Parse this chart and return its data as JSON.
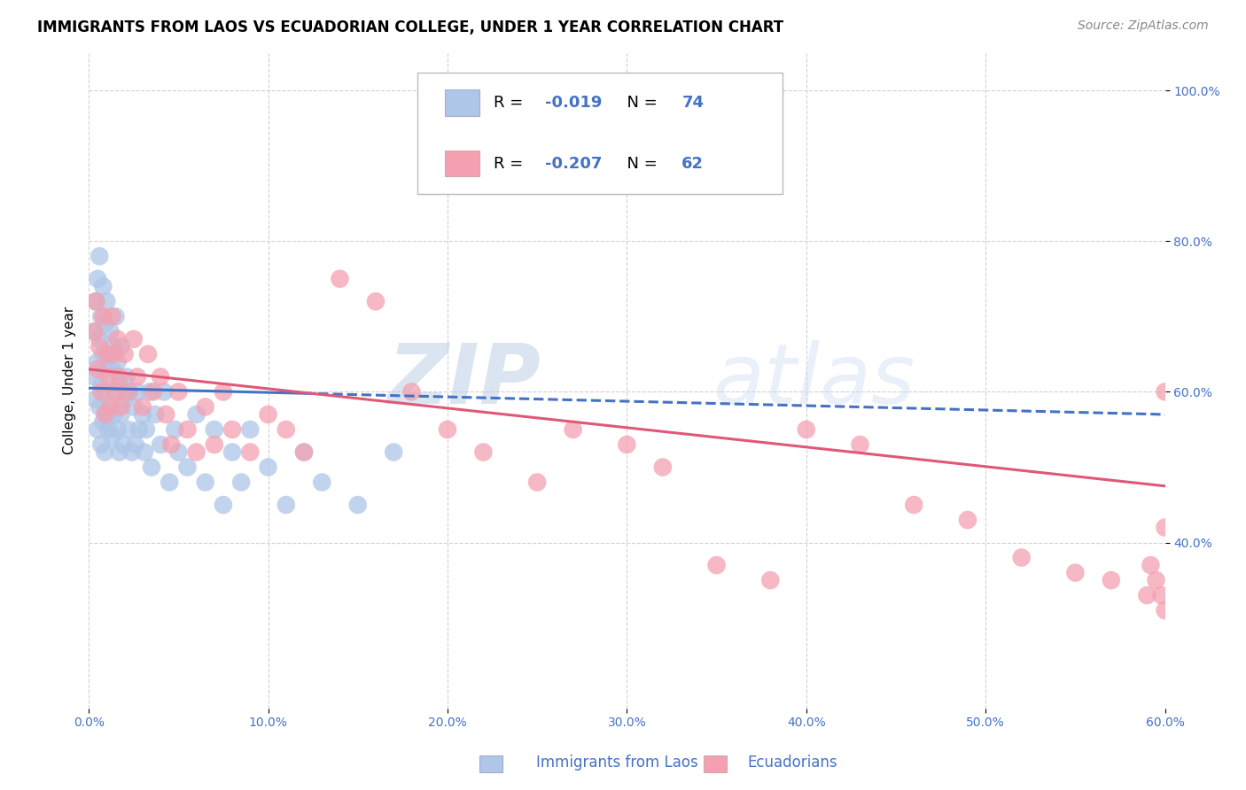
{
  "title": "IMMIGRANTS FROM LAOS VS ECUADORIAN COLLEGE, UNDER 1 YEAR CORRELATION CHART",
  "source": "Source: ZipAtlas.com",
  "ylabel": "College, Under 1 year",
  "x_min": 0.0,
  "x_max": 0.6,
  "y_min": 0.18,
  "y_max": 1.05,
  "x_ticks": [
    0.0,
    0.1,
    0.2,
    0.3,
    0.4,
    0.5,
    0.6
  ],
  "y_ticks": [
    0.4,
    0.6,
    0.8,
    1.0
  ],
  "legend_entries": [
    {
      "label": "Immigrants from Laos",
      "R": "-0.019",
      "N": "74",
      "color": "#aec6e8"
    },
    {
      "label": "Ecuadorians",
      "R": "-0.207",
      "N": "62",
      "color": "#f4a0b0"
    }
  ],
  "blue_scatter_x": [
    0.003,
    0.003,
    0.004,
    0.004,
    0.005,
    0.005,
    0.005,
    0.006,
    0.006,
    0.006,
    0.007,
    0.007,
    0.007,
    0.008,
    0.008,
    0.008,
    0.009,
    0.009,
    0.009,
    0.01,
    0.01,
    0.01,
    0.011,
    0.011,
    0.012,
    0.012,
    0.013,
    0.013,
    0.014,
    0.014,
    0.015,
    0.015,
    0.016,
    0.016,
    0.017,
    0.017,
    0.018,
    0.018,
    0.019,
    0.02,
    0.021,
    0.022,
    0.023,
    0.024,
    0.025,
    0.026,
    0.027,
    0.028,
    0.03,
    0.031,
    0.032,
    0.034,
    0.035,
    0.037,
    0.04,
    0.042,
    0.045,
    0.048,
    0.05,
    0.055,
    0.06,
    0.065,
    0.07,
    0.075,
    0.08,
    0.085,
    0.09,
    0.1,
    0.11,
    0.12,
    0.13,
    0.15,
    0.17,
    0.2
  ],
  "blue_scatter_y": [
    0.62,
    0.68,
    0.59,
    0.72,
    0.55,
    0.64,
    0.75,
    0.58,
    0.67,
    0.78,
    0.53,
    0.61,
    0.7,
    0.56,
    0.65,
    0.74,
    0.52,
    0.6,
    0.69,
    0.57,
    0.63,
    0.72,
    0.55,
    0.65,
    0.58,
    0.68,
    0.54,
    0.63,
    0.57,
    0.66,
    0.6,
    0.7,
    0.55,
    0.64,
    0.52,
    0.61,
    0.57,
    0.66,
    0.53,
    0.59,
    0.62,
    0.55,
    0.6,
    0.52,
    0.58,
    0.53,
    0.6,
    0.55,
    0.57,
    0.52,
    0.55,
    0.6,
    0.5,
    0.57,
    0.53,
    0.6,
    0.48,
    0.55,
    0.52,
    0.5,
    0.57,
    0.48,
    0.55,
    0.45,
    0.52,
    0.48,
    0.55,
    0.5,
    0.45,
    0.52,
    0.48,
    0.45,
    0.52,
    0.9
  ],
  "pink_scatter_x": [
    0.003,
    0.004,
    0.005,
    0.006,
    0.007,
    0.008,
    0.009,
    0.01,
    0.011,
    0.012,
    0.013,
    0.014,
    0.015,
    0.016,
    0.017,
    0.018,
    0.02,
    0.022,
    0.025,
    0.027,
    0.03,
    0.033,
    0.036,
    0.04,
    0.043,
    0.046,
    0.05,
    0.055,
    0.06,
    0.065,
    0.07,
    0.075,
    0.08,
    0.09,
    0.1,
    0.11,
    0.12,
    0.14,
    0.16,
    0.18,
    0.2,
    0.22,
    0.25,
    0.27,
    0.3,
    0.32,
    0.35,
    0.38,
    0.4,
    0.43,
    0.46,
    0.49,
    0.52,
    0.55,
    0.57,
    0.59,
    0.592,
    0.595,
    0.598,
    0.6,
    0.6,
    0.6
  ],
  "pink_scatter_y": [
    0.68,
    0.72,
    0.63,
    0.66,
    0.6,
    0.7,
    0.57,
    0.65,
    0.62,
    0.58,
    0.7,
    0.65,
    0.6,
    0.67,
    0.62,
    0.58,
    0.65,
    0.6,
    0.67,
    0.62,
    0.58,
    0.65,
    0.6,
    0.62,
    0.57,
    0.53,
    0.6,
    0.55,
    0.52,
    0.58,
    0.53,
    0.6,
    0.55,
    0.52,
    0.57,
    0.55,
    0.52,
    0.75,
    0.72,
    0.6,
    0.55,
    0.52,
    0.48,
    0.55,
    0.53,
    0.5,
    0.37,
    0.35,
    0.55,
    0.53,
    0.45,
    0.43,
    0.38,
    0.36,
    0.35,
    0.33,
    0.37,
    0.35,
    0.33,
    0.31,
    0.6,
    0.42
  ],
  "blue_line_x0": 0.0,
  "blue_line_x1": 0.6,
  "blue_line_y0": 0.605,
  "blue_line_y1": 0.57,
  "blue_line_solid_x1": 0.12,
  "pink_line_x0": 0.0,
  "pink_line_x1": 0.6,
  "pink_line_y0": 0.63,
  "pink_line_y1": 0.475,
  "scatter_color_blue": "#aec6e8",
  "scatter_color_pink": "#f4a0b0",
  "line_color_blue": "#4472c4",
  "line_color_pink": "#e05878",
  "watermark_zip": "ZIP",
  "watermark_atlas": "atlas",
  "background_color": "#ffffff",
  "title_fontsize": 12,
  "axis_label_fontsize": 11,
  "tick_fontsize": 10,
  "legend_fontsize": 13,
  "source_fontsize": 10,
  "tick_color": "#4472c4"
}
